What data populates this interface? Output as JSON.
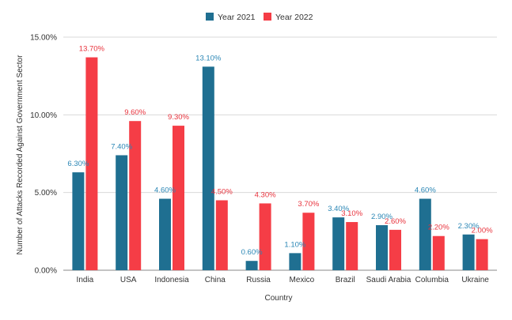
{
  "chart_data": {
    "type": "bar",
    "title": "",
    "xlabel": "Country",
    "ylabel": "Number of Attacks Recorded Against Government Sector",
    "categories": [
      "India",
      "USA",
      "Indonesia",
      "China",
      "Russia",
      "Mexico",
      "Brazil",
      "Saudi Arabia",
      "Columbia",
      "Ukraine"
    ],
    "series": [
      {
        "name": "Year 2021",
        "color": "#1f6f91",
        "label_color": "#2a86b5",
        "values": [
          6.3,
          7.4,
          4.6,
          13.1,
          0.6,
          1.1,
          3.4,
          2.9,
          4.6,
          2.3
        ],
        "labels": [
          "6.30%",
          "7.40%",
          "4.60%",
          "13.10%",
          "0.60%",
          "1.10%",
          "3.40%",
          "2.90%",
          "4.60%",
          "2.30%"
        ]
      },
      {
        "name": "Year 2022",
        "color": "#f53d46",
        "label_color": "#e8323c",
        "values": [
          13.7,
          9.6,
          9.3,
          4.5,
          4.3,
          3.7,
          3.1,
          2.6,
          2.2,
          2.0
        ],
        "labels": [
          "13.70%",
          "9.60%",
          "9.30%",
          "4.50%",
          "4.30%",
          "3.70%",
          "3.10%",
          "2.60%",
          "2.20%",
          "2.00%"
        ]
      }
    ],
    "ylim": [
      0,
      15
    ],
    "yticks": [
      0,
      5,
      10,
      15
    ],
    "ytick_labels": [
      "0.00%",
      "5.00%",
      "10.00%",
      "15.00%"
    ],
    "grid": true,
    "legend_position": "top-center"
  }
}
